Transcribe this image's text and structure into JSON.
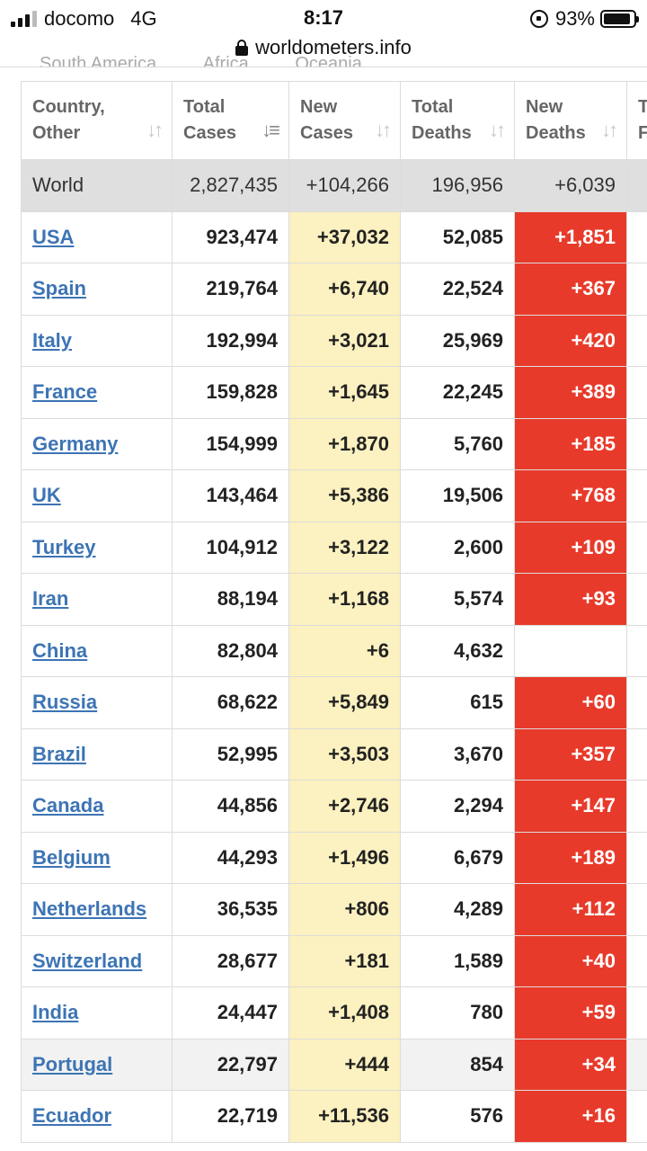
{
  "status_bar": {
    "carrier": "docomo",
    "network": "4G",
    "time": "8:17",
    "battery": "93%"
  },
  "url": "worldometers.info",
  "continent_tabs": [
    "South America",
    "Africa",
    "Oceania"
  ],
  "table": {
    "headers": [
      {
        "line1": "Country,",
        "line2": "Other"
      },
      {
        "line1": "Total",
        "line2": "Cases"
      },
      {
        "line1": "New",
        "line2": "Cases"
      },
      {
        "line1": "Total",
        "line2": "Deaths"
      },
      {
        "line1": "New",
        "line2": "Deaths"
      },
      {
        "line1": "T",
        "line2": "F"
      }
    ],
    "world": {
      "country": "World",
      "total_cases": "2,827,435",
      "new_cases": "+104,266",
      "total_deaths": "196,956",
      "new_deaths": "+6,039"
    },
    "rows": [
      {
        "country": "USA",
        "total_cases": "923,474",
        "new_cases": "+37,032",
        "total_deaths": "52,085",
        "new_deaths": "+1,851"
      },
      {
        "country": "Spain",
        "total_cases": "219,764",
        "new_cases": "+6,740",
        "total_deaths": "22,524",
        "new_deaths": "+367"
      },
      {
        "country": "Italy",
        "total_cases": "192,994",
        "new_cases": "+3,021",
        "total_deaths": "25,969",
        "new_deaths": "+420"
      },
      {
        "country": "France",
        "total_cases": "159,828",
        "new_cases": "+1,645",
        "total_deaths": "22,245",
        "new_deaths": "+389"
      },
      {
        "country": "Germany",
        "total_cases": "154,999",
        "new_cases": "+1,870",
        "total_deaths": "5,760",
        "new_deaths": "+185"
      },
      {
        "country": "UK",
        "total_cases": "143,464",
        "new_cases": "+5,386",
        "total_deaths": "19,506",
        "new_deaths": "+768"
      },
      {
        "country": "Turkey",
        "total_cases": "104,912",
        "new_cases": "+3,122",
        "total_deaths": "2,600",
        "new_deaths": "+109"
      },
      {
        "country": "Iran",
        "total_cases": "88,194",
        "new_cases": "+1,168",
        "total_deaths": "5,574",
        "new_deaths": "+93"
      },
      {
        "country": "China",
        "total_cases": "82,804",
        "new_cases": "+6",
        "total_deaths": "4,632",
        "new_deaths": ""
      },
      {
        "country": "Russia",
        "total_cases": "68,622",
        "new_cases": "+5,849",
        "total_deaths": "615",
        "new_deaths": "+60"
      },
      {
        "country": "Brazil",
        "total_cases": "52,995",
        "new_cases": "+3,503",
        "total_deaths": "3,670",
        "new_deaths": "+357"
      },
      {
        "country": "Canada",
        "total_cases": "44,856",
        "new_cases": "+2,746",
        "total_deaths": "2,294",
        "new_deaths": "+147"
      },
      {
        "country": "Belgium",
        "total_cases": "44,293",
        "new_cases": "+1,496",
        "total_deaths": "6,679",
        "new_deaths": "+189"
      },
      {
        "country": "Netherlands",
        "total_cases": "36,535",
        "new_cases": "+806",
        "total_deaths": "4,289",
        "new_deaths": "+112"
      },
      {
        "country": "Switzerland",
        "total_cases": "28,677",
        "new_cases": "+181",
        "total_deaths": "1,589",
        "new_deaths": "+40"
      },
      {
        "country": "India",
        "total_cases": "24,447",
        "new_cases": "+1,408",
        "total_deaths": "780",
        "new_deaths": "+59"
      },
      {
        "country": "Portugal",
        "total_cases": "22,797",
        "new_cases": "+444",
        "total_deaths": "854",
        "new_deaths": "+34"
      },
      {
        "country": "Ecuador",
        "total_cases": "22,719",
        "new_cases": "+11,536",
        "total_deaths": "576",
        "new_deaths": "+16"
      }
    ]
  },
  "colors": {
    "new_cases_bg": "#fcf1c0",
    "new_deaths_bg": "#e83a2a",
    "link": "#3d74b4",
    "world_row_bg": "#dfdfdf"
  }
}
